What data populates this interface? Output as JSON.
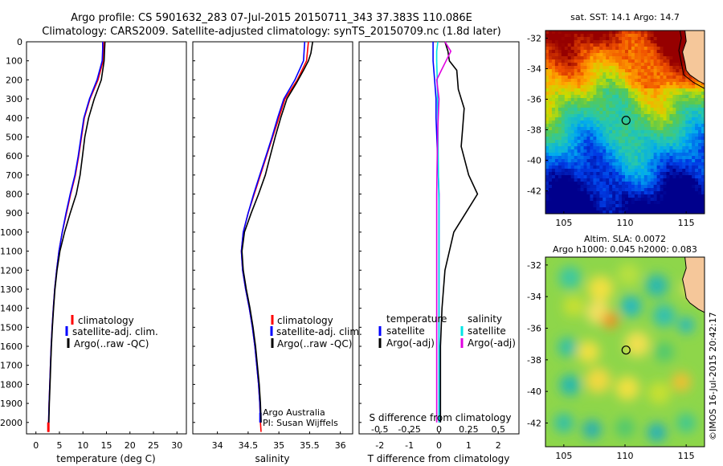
{
  "header": {
    "title_line1": "Argo profile: CS 5901632_283 07-Jul-2015 20150711_343 37.383S 110.086E",
    "title_line2": "Climatology: CARS2009. Satellite-adjusted climatology: synTS_20150709.nc (1.8d later)"
  },
  "credit": "©IMOS 16-Jul-2015 20:42:17",
  "colors": {
    "climatology": "#ff0000",
    "satellite": "#0000ff",
    "argo": "#000000",
    "sal_satellite": "#00e5e5",
    "sal_argo": "#e000e0"
  },
  "chart_data": [
    {
      "type": "line",
      "id": "temperature",
      "xlabel": "temperature (deg C)",
      "xlim": [
        -2,
        32
      ],
      "xticks": [
        0,
        5,
        10,
        15,
        20,
        25,
        30
      ],
      "xticklabels": [
        "0",
        "5",
        "10",
        "15",
        "20",
        "25",
        "30"
      ],
      "ylim": [
        2060,
        0
      ],
      "yticks": [
        0,
        100,
        200,
        300,
        400,
        500,
        600,
        700,
        800,
        900,
        1000,
        1100,
        1200,
        1300,
        1400,
        1500,
        1600,
        1700,
        1800,
        1900,
        2000
      ],
      "legend": [
        "climatology",
        "satellite-adj. clim.",
        "Argo(..raw -QC)"
      ],
      "series": [
        {
          "name": "climatology",
          "color": "#ff0000",
          "points": [
            [
              14.4,
              0
            ],
            [
              14.4,
              40
            ],
            [
              14.3,
              100
            ],
            [
              13.2,
              200
            ],
            [
              11.5,
              300
            ],
            [
              10.3,
              400
            ],
            [
              9.7,
              500
            ],
            [
              9.1,
              600
            ],
            [
              8.4,
              700
            ],
            [
              7.4,
              800
            ],
            [
              6.5,
              900
            ],
            [
              5.6,
              1000
            ],
            [
              4.9,
              1100
            ],
            [
              4.4,
              1200
            ],
            [
              4.0,
              1300
            ],
            [
              3.7,
              1400
            ],
            [
              3.45,
              1500
            ],
            [
              3.25,
              1600
            ],
            [
              3.1,
              1700
            ],
            [
              2.95,
              1800
            ],
            [
              2.8,
              1900
            ],
            [
              2.7,
              2000
            ],
            [
              2.65,
              2050
            ]
          ]
        },
        {
          "name": "satellite-adj. clim.",
          "color": "#0000ff",
          "points": [
            [
              14.2,
              0
            ],
            [
              14.2,
              40
            ],
            [
              14.1,
              100
            ],
            [
              13.0,
              200
            ],
            [
              11.4,
              300
            ],
            [
              10.2,
              400
            ],
            [
              9.6,
              500
            ],
            [
              9.0,
              600
            ],
            [
              8.3,
              700
            ],
            [
              7.3,
              800
            ],
            [
              6.4,
              900
            ],
            [
              5.6,
              1000
            ],
            [
              4.9,
              1100
            ],
            [
              4.4,
              1200
            ],
            [
              4.0,
              1300
            ],
            [
              3.7,
              1400
            ],
            [
              3.45,
              1500
            ],
            [
              3.25,
              1600
            ],
            [
              3.1,
              1700
            ],
            [
              2.95,
              1800
            ],
            [
              2.8,
              1900
            ],
            [
              2.7,
              2000
            ]
          ]
        },
        {
          "name": "Argo(..raw -QC)",
          "color": "#000000",
          "points": [
            [
              14.7,
              0
            ],
            [
              14.6,
              40
            ],
            [
              14.5,
              100
            ],
            [
              13.9,
              200
            ],
            [
              12.4,
              300
            ],
            [
              11.2,
              400
            ],
            [
              10.4,
              500
            ],
            [
              9.9,
              600
            ],
            [
              9.4,
              700
            ],
            [
              8.6,
              800
            ],
            [
              7.3,
              900
            ],
            [
              6.1,
              1000
            ],
            [
              5.1,
              1100
            ],
            [
              4.5,
              1200
            ],
            [
              4.05,
              1300
            ],
            [
              3.75,
              1400
            ],
            [
              3.5,
              1500
            ],
            [
              3.3,
              1600
            ],
            [
              3.15,
              1700
            ],
            [
              3.0,
              1800
            ],
            [
              2.85,
              1900
            ],
            [
              2.75,
              2000
            ]
          ]
        }
      ]
    },
    {
      "type": "line",
      "id": "salinity",
      "xlabel": "salinity",
      "xlim": [
        33.6,
        36.2
      ],
      "xticks": [
        34,
        34.5,
        35,
        35.5,
        36
      ],
      "xticklabels": [
        "34",
        "34.5",
        "35",
        "35.5",
        "36"
      ],
      "ylim": [
        2060,
        0
      ],
      "legend": [
        "climatology",
        "satellite-adj. clim.",
        "Argo(..raw -QC)"
      ],
      "annotation": [
        "Argo Australia",
        "PI: Susan Wijffels"
      ],
      "series": [
        {
          "name": "climatology",
          "color": "#ff0000",
          "points": [
            [
              35.48,
              0
            ],
            [
              35.45,
              100
            ],
            [
              35.3,
              200
            ],
            [
              35.1,
              300
            ],
            [
              35.0,
              400
            ],
            [
              34.9,
              500
            ],
            [
              34.8,
              600
            ],
            [
              34.7,
              700
            ],
            [
              34.6,
              800
            ],
            [
              34.5,
              900
            ],
            [
              34.42,
              1000
            ],
            [
              34.39,
              1100
            ],
            [
              34.41,
              1200
            ],
            [
              34.46,
              1300
            ],
            [
              34.52,
              1400
            ],
            [
              34.57,
              1500
            ],
            [
              34.61,
              1600
            ],
            [
              34.64,
              1700
            ],
            [
              34.67,
              1800
            ],
            [
              34.69,
              1900
            ],
            [
              34.7,
              2000
            ],
            [
              34.71,
              2050
            ]
          ]
        },
        {
          "name": "satellite-adj. clim.",
          "color": "#0000ff",
          "points": [
            [
              35.42,
              0
            ],
            [
              35.4,
              100
            ],
            [
              35.26,
              200
            ],
            [
              35.08,
              300
            ],
            [
              34.98,
              400
            ],
            [
              34.89,
              500
            ],
            [
              34.79,
              600
            ],
            [
              34.69,
              700
            ],
            [
              34.59,
              800
            ],
            [
              34.5,
              900
            ],
            [
              34.42,
              1000
            ],
            [
              34.39,
              1100
            ],
            [
              34.41,
              1200
            ],
            [
              34.46,
              1300
            ],
            [
              34.52,
              1400
            ],
            [
              34.57,
              1500
            ],
            [
              34.61,
              1600
            ],
            [
              34.64,
              1700
            ],
            [
              34.67,
              1800
            ],
            [
              34.69,
              1900
            ],
            [
              34.7,
              2000
            ]
          ]
        },
        {
          "name": "Argo(..raw -QC)",
          "color": "#000000",
          "points": [
            [
              35.55,
              0
            ],
            [
              35.52,
              60
            ],
            [
              35.48,
              100
            ],
            [
              35.4,
              150
            ],
            [
              35.28,
              220
            ],
            [
              35.13,
              300
            ],
            [
              35.03,
              400
            ],
            [
              34.94,
              500
            ],
            [
              34.86,
              600
            ],
            [
              34.78,
              700
            ],
            [
              34.67,
              800
            ],
            [
              34.55,
              900
            ],
            [
              34.44,
              1000
            ],
            [
              34.4,
              1100
            ],
            [
              34.42,
              1200
            ],
            [
              34.47,
              1300
            ],
            [
              34.53,
              1400
            ],
            [
              34.58,
              1500
            ],
            [
              34.62,
              1600
            ],
            [
              34.65,
              1700
            ],
            [
              34.68,
              1800
            ],
            [
              34.7,
              1900
            ],
            [
              34.71,
              2000
            ]
          ]
        }
      ]
    },
    {
      "type": "line",
      "id": "difference",
      "xlabel": "T difference from climatology",
      "top_axis_label": "S difference from climatology",
      "xlim": [
        -2.7,
        2.7
      ],
      "xticks": [
        -2,
        -1,
        0,
        1,
        2
      ],
      "xticklabels": [
        "-2",
        "-1",
        "0",
        "1",
        "2"
      ],
      "sticks": [
        -0.5,
        -0.25,
        0,
        0.25,
        0.5
      ],
      "sticklabels": [
        "-0.5",
        "-0.25",
        "0",
        "0.25",
        "0.5"
      ],
      "ylim": [
        2060,
        0
      ],
      "legend_temperature_title": "temperature",
      "legend_salinity_title": "salinity",
      "legend_temperature": [
        "satellite",
        "Argo(-adj)"
      ],
      "legend_salinity": [
        "satellite",
        "Argo(-adj)"
      ],
      "series": [
        {
          "name": "T satellite",
          "color": "#0000ff",
          "points": [
            [
              -0.2,
              0
            ],
            [
              -0.2,
              50
            ],
            [
              -0.2,
              100
            ],
            [
              -0.15,
              200
            ],
            [
              -0.1,
              300
            ],
            [
              -0.1,
              400
            ],
            [
              -0.05,
              600
            ],
            [
              0,
              800
            ],
            [
              0,
              2000
            ]
          ]
        },
        {
          "name": "T Argo(-adj)",
          "color": "#000000",
          "points": [
            [
              0.2,
              0
            ],
            [
              0.3,
              50
            ],
            [
              0.35,
              100
            ],
            [
              0.6,
              150
            ],
            [
              0.65,
              250
            ],
            [
              0.85,
              350
            ],
            [
              0.8,
              450
            ],
            [
              0.75,
              550
            ],
            [
              1.0,
              700
            ],
            [
              1.3,
              800
            ],
            [
              0.9,
              900
            ],
            [
              0.5,
              1000
            ],
            [
              0.2,
              1200
            ],
            [
              0.1,
              1400
            ],
            [
              0.05,
              1600
            ],
            [
              0.05,
              1800
            ],
            [
              0.05,
              2000
            ]
          ]
        },
        {
          "name": "S satellite",
          "color": "#00e5e5",
          "points": [
            [
              -0.01,
              0
            ],
            [
              -0.02,
              50
            ],
            [
              -0.02,
              100
            ],
            [
              -0.015,
              200
            ],
            [
              -0.01,
              400
            ],
            [
              -0.005,
              700
            ],
            [
              0,
              900
            ],
            [
              0,
              2000
            ]
          ]
        },
        {
          "name": "S Argo(-adj)",
          "color": "#e000e0",
          "points": [
            [
              0.05,
              0
            ],
            [
              0.1,
              50
            ],
            [
              0.06,
              100
            ],
            [
              0.02,
              150
            ],
            [
              -0.02,
              200
            ],
            [
              0,
              300
            ],
            [
              -0.01,
              450
            ],
            [
              -0.015,
              600
            ],
            [
              -0.02,
              800
            ],
            [
              -0.02,
              1200
            ],
            [
              -0.02,
              1500
            ],
            [
              -0.02,
              1800
            ],
            [
              -0.02,
              2000
            ]
          ]
        }
      ]
    },
    {
      "type": "heatmap",
      "id": "sst_map",
      "title": "sat. SST: 14.1  Argo: 14.7",
      "xlim": [
        103.5,
        116.5
      ],
      "ylim": [
        -43.5,
        -31.5
      ],
      "xticks": [
        105,
        110,
        115
      ],
      "yticks": [
        -32,
        -34,
        -36,
        -38,
        -40,
        -42
      ],
      "marker": {
        "lon": 110.086,
        "lat": -37.383
      }
    },
    {
      "type": "heatmap",
      "id": "sla_map",
      "title_line1": "Altim. SLA: 0.0072",
      "title_line2": "Argo h1000: 0.045 h2000: 0.083",
      "xlim": [
        103.5,
        116.5
      ],
      "ylim": [
        -43.5,
        -31.5
      ],
      "xticks": [
        105,
        110,
        115
      ],
      "yticks": [
        -32,
        -34,
        -36,
        -38,
        -40,
        -42
      ],
      "marker": {
        "lon": 110.086,
        "lat": -37.383
      }
    }
  ]
}
